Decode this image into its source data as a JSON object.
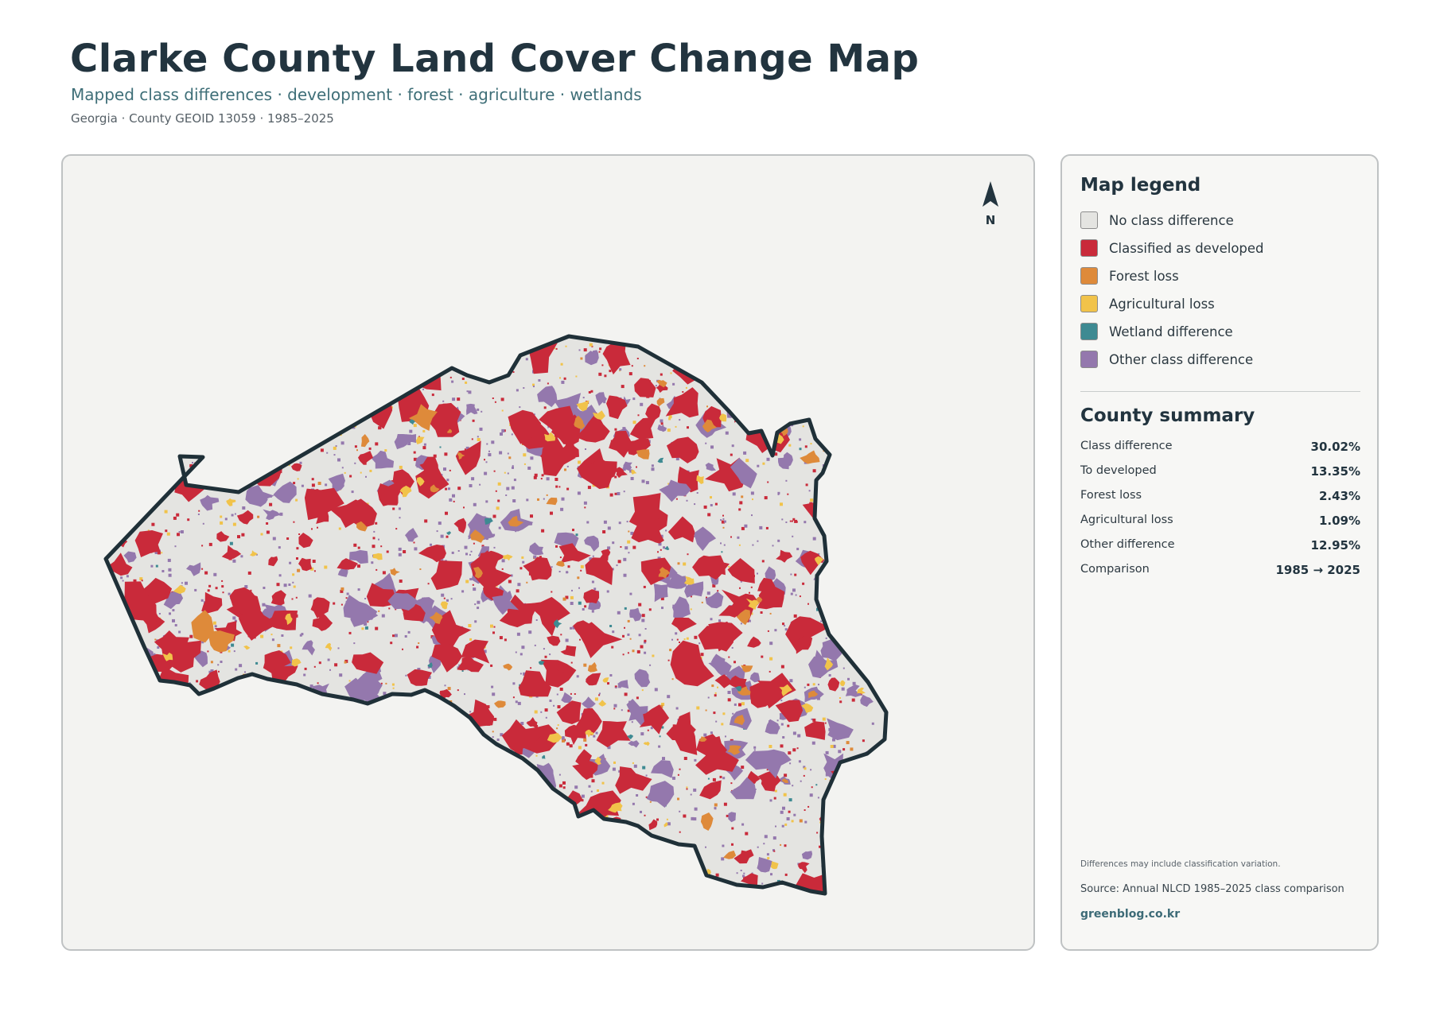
{
  "header": {
    "title": "Clarke County Land Cover Change Map",
    "subtitle": "Mapped class differences · development · forest · agriculture · wetlands",
    "meta": "Georgia · County GEOID 13059 · 1985–2025"
  },
  "map": {
    "north_label": "N",
    "colors": {
      "background": "#f3f3f1",
      "county_fill": "#e4e4e1",
      "county_outline": "#1f3038"
    }
  },
  "legend": {
    "title": "Map legend",
    "items": [
      {
        "label": "No class difference",
        "color": "#e4e4e1"
      },
      {
        "label": "Classified as developed",
        "color": "#c92a3a"
      },
      {
        "label": "Forest loss",
        "color": "#de8a3a"
      },
      {
        "label": "Agricultural loss",
        "color": "#f1c34a"
      },
      {
        "label": "Wetland difference",
        "color": "#3e8a92"
      },
      {
        "label": "Other class difference",
        "color": "#9478ad"
      }
    ]
  },
  "summary": {
    "title": "County summary",
    "rows": [
      {
        "label": "Class difference",
        "value": "30.02%"
      },
      {
        "label": "To developed",
        "value": "13.35%"
      },
      {
        "label": "Forest loss",
        "value": "2.43%"
      },
      {
        "label": "Agricultural loss",
        "value": "1.09%"
      },
      {
        "label": "Other difference",
        "value": "12.95%"
      },
      {
        "label": "Comparison",
        "value": "1985 → 2025"
      }
    ]
  },
  "footer": {
    "note": "Differences may include classification variation.",
    "source": "Source: Annual NLCD 1985–2025 class comparison",
    "site": "greenblog.co.kr"
  }
}
